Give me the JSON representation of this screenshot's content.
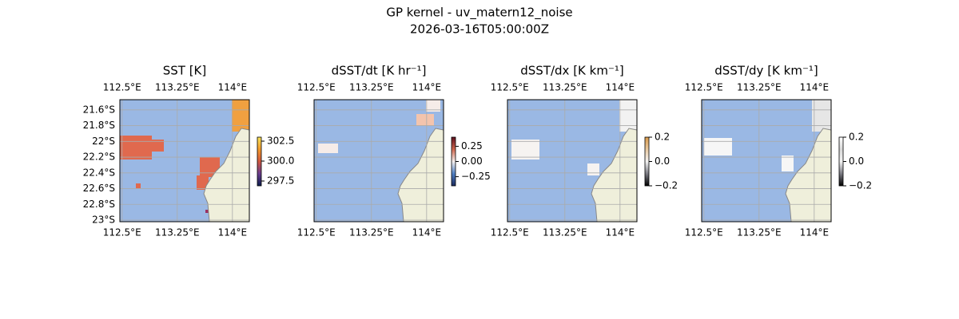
{
  "figure": {
    "title": "GP kernel - uv_matern12_noise",
    "subtitle": "2026-03-16T05:00:00Z"
  },
  "chart_data": [
    {
      "type": "map",
      "title": "SST [K]",
      "xlim": [
        112.47,
        114.23
      ],
      "ylim": [
        -23.02,
        -21.47
      ],
      "xticks": [
        {
          "value": 112.5,
          "label": "112.5°E"
        },
        {
          "value": 113.25,
          "label": "113.25°E"
        },
        {
          "value": 114,
          "label": "114°E"
        }
      ],
      "yticks": [
        {
          "value": -21.6,
          "label": "21.6°S"
        },
        {
          "value": -21.8,
          "label": "21.8°S"
        },
        {
          "value": -22,
          "label": "22°S"
        },
        {
          "value": -22.2,
          "label": "22.2°S"
        },
        {
          "value": -22.4,
          "label": "22.4°S"
        },
        {
          "value": -22.6,
          "label": "22.6°S"
        },
        {
          "value": -22.8,
          "label": "22.8°S"
        },
        {
          "value": -23,
          "label": "23°S"
        }
      ],
      "colorbar": {
        "lim": [
          296.9,
          303.0
        ],
        "colors": [
          "#0b1d4d",
          "#6a3d8f",
          "#d2573f",
          "#f39a2b",
          "#f7e35a"
        ],
        "ticks": [
          {
            "value": 302.5,
            "label": "302.5"
          },
          {
            "value": 300,
            "label": "300.0"
          },
          {
            "value": 297.5,
            "label": "297.5"
          }
        ]
      }
    },
    {
      "type": "map",
      "title": "dSST/dt [K hr⁻¹]",
      "xlim": [
        112.47,
        114.23
      ],
      "ylim": [
        -23.02,
        -21.47
      ],
      "xticks": [
        {
          "value": 112.5,
          "label": "112.5°E"
        },
        {
          "value": 113.25,
          "label": "113.25°E"
        },
        {
          "value": 114,
          "label": "114°E"
        }
      ],
      "colorbar": {
        "lim": [
          -0.4,
          0.4
        ],
        "colors": [
          "#1b2a5e",
          "#4f80c4",
          "#f5f0ee",
          "#d0674e",
          "#5e0f1e"
        ],
        "ticks": [
          {
            "value": 0.25,
            "label": "0.25"
          },
          {
            "value": 0,
            "label": "0.00"
          },
          {
            "value": -0.25,
            "label": "−0.25"
          }
        ]
      }
    },
    {
      "type": "map",
      "title": "dSST/dx [K km⁻¹]",
      "xlim": [
        112.47,
        114.23
      ],
      "ylim": [
        -23.02,
        -21.47
      ],
      "xticks": [
        {
          "value": 112.5,
          "label": "112.5°E"
        },
        {
          "value": 113.25,
          "label": "113.25°E"
        },
        {
          "value": 114,
          "label": "114°E"
        }
      ],
      "colorbar": {
        "lim": [
          -0.2,
          0.2
        ],
        "colors": [
          "#000000",
          "#7a7a82",
          "#f4f4f4",
          "#e8c9a0",
          "#d99a4a"
        ],
        "ticks": [
          {
            "value": 0.2,
            "label": "0.2"
          },
          {
            "value": 0,
            "label": "0.0"
          },
          {
            "value": -0.2,
            "label": "−0.2"
          }
        ]
      }
    },
    {
      "type": "map",
      "title": "dSST/dy [K km⁻¹]",
      "xlim": [
        112.47,
        114.23
      ],
      "ylim": [
        -23.02,
        -21.47
      ],
      "xticks": [
        {
          "value": 112.5,
          "label": "112.5°E"
        },
        {
          "value": 113.25,
          "label": "113.25°E"
        },
        {
          "value": 114,
          "label": "114°E"
        }
      ],
      "colorbar": {
        "lim": [
          -0.2,
          0.2
        ],
        "colors": [
          "#000000",
          "#7a7a82",
          "#f4f4f4",
          "#d9d9d9",
          "#ffffff"
        ],
        "ticks": [
          {
            "value": 0.2,
            "label": "0.2"
          },
          {
            "value": 0,
            "label": "0.0"
          },
          {
            "value": -0.2,
            "label": "−0.2"
          }
        ]
      }
    }
  ]
}
